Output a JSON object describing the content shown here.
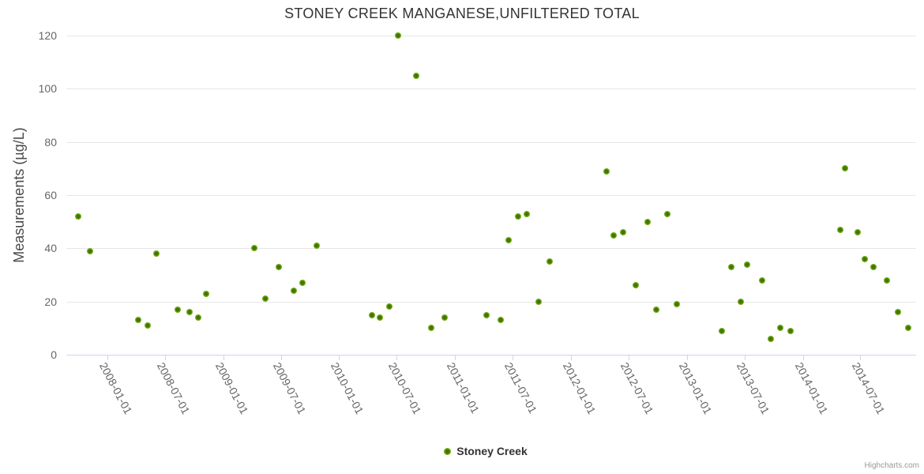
{
  "chart": {
    "title": "STONEY CREEK MANGANESE,UNFILTERED TOTAL",
    "y_axis_title": "Measurements (µg/L)",
    "legend_label": "Stoney Creek",
    "credits": "Highcharts.com",
    "colors": {
      "point": "#7AB317",
      "point_core": "#3F7301",
      "gridline": "#E6E6E6",
      "axis_line": "#CCD6EB",
      "tick_label": "#666666",
      "title": "#333333",
      "background": "#FFFFFF"
    }
  },
  "chart_data": {
    "type": "scatter",
    "title": "STONEY CREEK MANGANESE,UNFILTERED TOTAL",
    "xlabel": "",
    "ylabel": "Measurements (µg/L)",
    "legend_position": "bottom-center",
    "grid": true,
    "ylim": [
      0,
      122
    ],
    "y_ticks": [
      0,
      20,
      40,
      60,
      80,
      100,
      120
    ],
    "x_range": [
      "2007-08-25",
      "2014-12-26"
    ],
    "x_tick_labels": [
      "2008-01-01",
      "2008-07-01",
      "2009-01-01",
      "2009-07-01",
      "2010-01-01",
      "2010-07-01",
      "2011-01-01",
      "2011-07-01",
      "2012-01-01",
      "2012-07-01",
      "2013-01-01",
      "2013-07-01",
      "2014-01-01",
      "2014-07-01"
    ],
    "series": [
      {
        "name": "Stoney Creek",
        "points": [
          [
            "2007-10-02",
            52
          ],
          [
            "2007-11-08",
            39
          ],
          [
            "2008-04-07",
            13
          ],
          [
            "2008-05-07",
            11
          ],
          [
            "2008-06-04",
            38
          ],
          [
            "2008-08-10",
            17
          ],
          [
            "2008-09-16",
            16
          ],
          [
            "2008-10-13",
            14
          ],
          [
            "2008-11-07",
            23
          ],
          [
            "2009-04-09",
            40
          ],
          [
            "2009-05-13",
            21
          ],
          [
            "2009-06-24",
            33
          ],
          [
            "2009-08-11",
            24
          ],
          [
            "2009-09-07",
            27
          ],
          [
            "2009-10-22",
            41
          ],
          [
            "2010-04-14",
            15
          ],
          [
            "2010-05-09",
            14
          ],
          [
            "2010-06-09",
            18
          ],
          [
            "2010-07-05",
            120
          ],
          [
            "2010-08-31",
            105
          ],
          [
            "2010-10-19",
            10
          ],
          [
            "2010-11-30",
            14
          ],
          [
            "2011-04-11",
            15
          ],
          [
            "2011-05-24",
            13
          ],
          [
            "2011-06-20",
            43
          ],
          [
            "2011-07-19",
            52
          ],
          [
            "2011-08-16",
            53
          ],
          [
            "2011-09-21",
            20
          ],
          [
            "2011-10-26",
            35
          ],
          [
            "2012-04-22",
            69
          ],
          [
            "2012-05-15",
            45
          ],
          [
            "2012-06-14",
            46
          ],
          [
            "2012-07-24",
            26
          ],
          [
            "2012-08-30",
            50
          ],
          [
            "2012-09-26",
            17
          ],
          [
            "2012-10-31",
            53
          ],
          [
            "2012-12-01",
            19
          ],
          [
            "2013-04-22",
            9
          ],
          [
            "2013-05-20",
            33
          ],
          [
            "2013-06-20",
            20
          ],
          [
            "2013-07-09",
            34
          ],
          [
            "2013-08-27",
            28
          ],
          [
            "2013-09-23",
            6
          ],
          [
            "2013-10-23",
            10
          ],
          [
            "2013-11-24",
            9
          ],
          [
            "2014-04-28",
            47
          ],
          [
            "2014-05-15",
            70
          ],
          [
            "2014-06-22",
            46
          ],
          [
            "2014-07-15",
            36
          ],
          [
            "2014-08-11",
            33
          ],
          [
            "2014-09-23",
            28
          ],
          [
            "2014-10-27",
            16
          ],
          [
            "2014-11-29",
            10
          ]
        ]
      }
    ]
  }
}
